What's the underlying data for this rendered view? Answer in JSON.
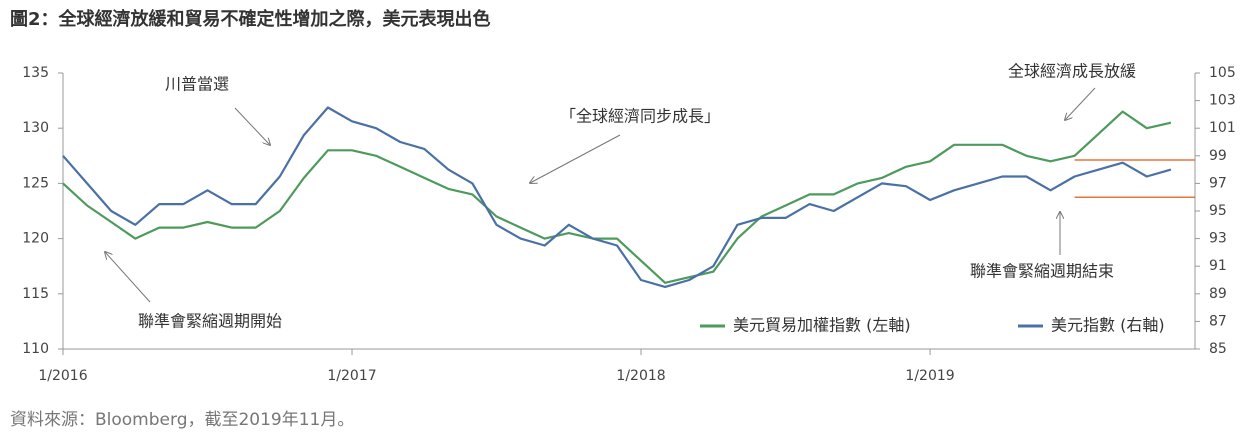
{
  "chart_data": {
    "type": "line",
    "title": "圖2：全球經濟放緩和貿易不確定性增加之際，美元表現出色",
    "source": "資料來源：Bloomberg，截至2019年11月。",
    "x": [
      "2016-01",
      "2016-02",
      "2016-03",
      "2016-04",
      "2016-05",
      "2016-06",
      "2016-07",
      "2016-08",
      "2016-09",
      "2016-10",
      "2016-11",
      "2016-12",
      "2017-01",
      "2017-02",
      "2017-03",
      "2017-04",
      "2017-05",
      "2017-06",
      "2017-07",
      "2017-08",
      "2017-09",
      "2017-10",
      "2017-11",
      "2017-12",
      "2018-01",
      "2018-02",
      "2018-03",
      "2018-04",
      "2018-05",
      "2018-06",
      "2018-07",
      "2018-08",
      "2018-09",
      "2018-10",
      "2018-11",
      "2018-12",
      "2019-01",
      "2019-02",
      "2019-03",
      "2019-04",
      "2019-05",
      "2019-06",
      "2019-07",
      "2019-08",
      "2019-09",
      "2019-10",
      "2019-11"
    ],
    "xlim": [
      "2016-01",
      "2019-12"
    ],
    "xticks": [
      {
        "value": "2016-01",
        "label": "1/2016"
      },
      {
        "value": "2017-01",
        "label": "1/2017"
      },
      {
        "value": "2018-01",
        "label": "1/2018"
      },
      {
        "value": "2019-01",
        "label": "1/2019"
      }
    ],
    "series": [
      {
        "name": "美元貿易加權指數 (左軸)",
        "color": "#4e9a5c",
        "axis": "y",
        "values": [
          125,
          123,
          121.5,
          120,
          121,
          121,
          121.5,
          121,
          121,
          122.5,
          125.5,
          128,
          128,
          127.5,
          126.5,
          125.5,
          124.5,
          124,
          122,
          121,
          120,
          120.5,
          120,
          120,
          118,
          116,
          116.5,
          117,
          120,
          122,
          123,
          124,
          124,
          125,
          125.5,
          126.5,
          127,
          128.5,
          128.5,
          128.5,
          127.5,
          127,
          127.5,
          129.5,
          131.5,
          130,
          130.5
        ]
      },
      {
        "name": "美元指數 (右軸)",
        "color": "#4a70a5",
        "axis": "y2",
        "values": [
          99,
          97,
          95,
          94,
          95.5,
          95.5,
          96.5,
          95.5,
          95.5,
          97.5,
          100.5,
          102.5,
          101.5,
          101,
          100,
          99.5,
          98,
          97,
          94,
          93,
          92.5,
          94,
          93,
          92.5,
          90,
          89.5,
          90,
          91,
          94,
          94.5,
          94.5,
          95.5,
          95,
          96,
          97,
          96.8,
          95.8,
          96.5,
          97,
          97.5,
          97.5,
          96.5,
          97.5,
          98,
          98.5,
          97.5,
          98
        ]
      }
    ],
    "ylim": [
      110,
      135
    ],
    "yticks": [
      110,
      115,
      120,
      125,
      130,
      135
    ],
    "y2lim": [
      85,
      105
    ],
    "y2ticks": [
      85,
      87,
      89,
      91,
      93,
      95,
      97,
      99,
      101,
      103,
      105
    ],
    "hlines": [
      {
        "value": 98.7,
        "axis": "y2",
        "start": "2019-07",
        "color": "#e8743b"
      },
      {
        "value": 96,
        "axis": "y2",
        "start": "2019-07",
        "color": "#e8743b"
      }
    ],
    "annotations": [
      "川普當選",
      "「全球經濟同步成長」",
      "全球經濟成長放緩",
      "聯準會緊縮週期結束",
      "聯準會緊縮週期開始"
    ],
    "legend": "bottom-right"
  }
}
